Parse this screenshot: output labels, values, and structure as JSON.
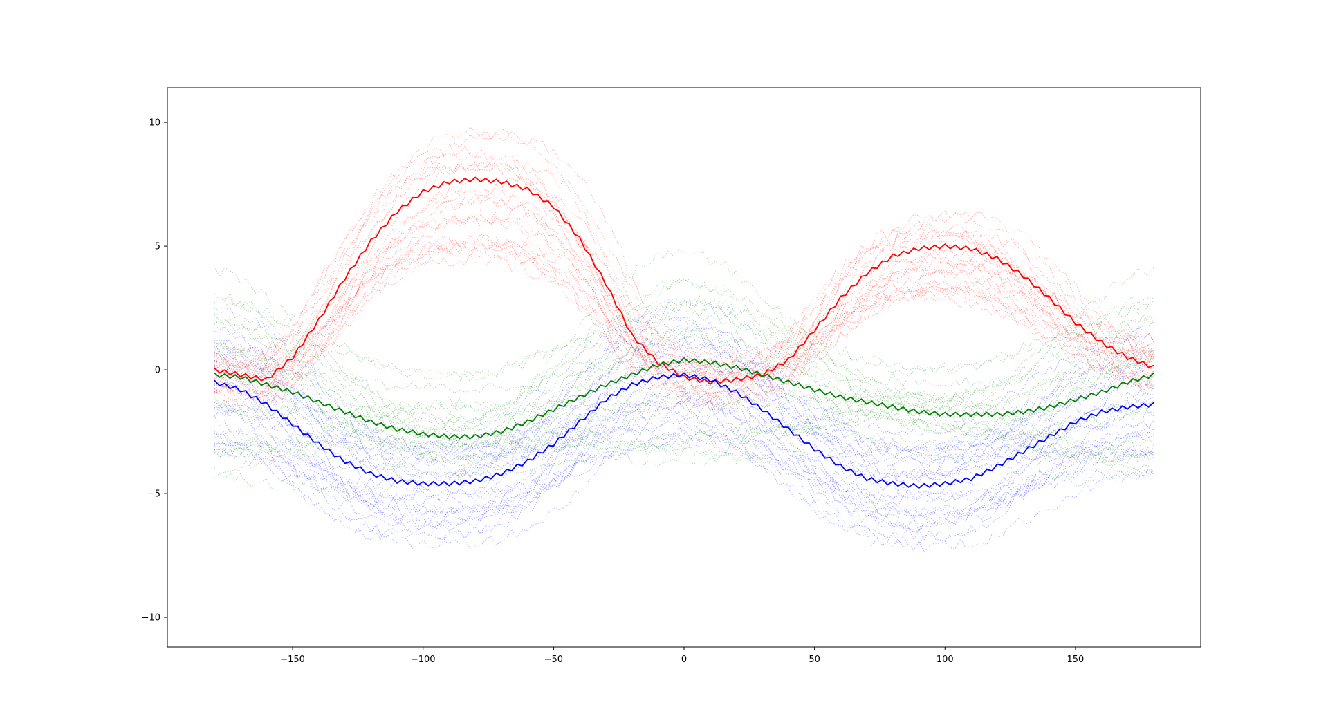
{
  "chart_data": {
    "type": "line",
    "title": "",
    "xlabel": "",
    "ylabel": "",
    "xlim": [
      -198,
      198
    ],
    "ylim": [
      -11.2,
      11.4
    ],
    "grid": false,
    "legend": "none",
    "x_ticks": [
      -150,
      -100,
      -50,
      0,
      50,
      100,
      150
    ],
    "x_tick_labels": [
      "−150",
      "−100",
      "−50",
      "0",
      "50",
      "100",
      "150"
    ],
    "y_ticks": [
      -10,
      -5,
      0,
      5,
      10
    ],
    "y_tick_labels": [
      "−10",
      "−5",
      "0",
      "5",
      "10"
    ],
    "x": [
      -180,
      -170,
      -160,
      -150,
      -140,
      -130,
      -120,
      -110,
      -100,
      -90,
      -80,
      -70,
      -60,
      -50,
      -40,
      -30,
      -20,
      -10,
      0,
      10,
      20,
      30,
      40,
      50,
      60,
      70,
      80,
      90,
      100,
      110,
      120,
      130,
      140,
      150,
      160,
      170,
      180
    ],
    "series": [
      {
        "color": "#ff0000",
        "style": "solid",
        "values": [
          0.0,
          -0.2,
          -0.4,
          0.5,
          2.0,
          3.7,
          5.2,
          6.4,
          7.2,
          7.6,
          7.7,
          7.6,
          7.3,
          6.6,
          5.3,
          3.5,
          1.4,
          0.3,
          -0.3,
          -0.5,
          -0.4,
          -0.2,
          0.4,
          1.6,
          2.9,
          3.9,
          4.6,
          4.9,
          5.0,
          4.9,
          4.5,
          3.8,
          2.9,
          1.9,
          1.1,
          0.5,
          0.1
        ]
      },
      {
        "color": "#0000ff",
        "style": "solid",
        "values": [
          -0.5,
          -0.8,
          -1.4,
          -2.2,
          -3.0,
          -3.7,
          -4.2,
          -4.5,
          -4.6,
          -4.6,
          -4.5,
          -4.2,
          -3.7,
          -3.0,
          -2.1,
          -1.2,
          -0.6,
          -0.3,
          -0.2,
          -0.4,
          -0.9,
          -1.6,
          -2.4,
          -3.2,
          -3.9,
          -4.4,
          -4.6,
          -4.7,
          -4.6,
          -4.4,
          -3.9,
          -3.3,
          -2.7,
          -2.1,
          -1.7,
          -1.5,
          -1.4
        ]
      },
      {
        "color": "#008000",
        "style": "solid",
        "values": [
          -0.2,
          -0.3,
          -0.6,
          -0.9,
          -1.3,
          -1.7,
          -2.1,
          -2.4,
          -2.6,
          -2.7,
          -2.7,
          -2.5,
          -2.1,
          -1.6,
          -1.1,
          -0.6,
          -0.2,
          0.2,
          0.4,
          0.3,
          0.1,
          -0.2,
          -0.5,
          -0.8,
          -1.1,
          -1.3,
          -1.5,
          -1.7,
          -1.8,
          -1.8,
          -1.8,
          -1.7,
          -1.5,
          -1.2,
          -0.9,
          -0.5,
          -0.2
        ]
      }
    ],
    "scatter_bands": [
      {
        "color": "#ff0000",
        "count": 25,
        "amplitude_range": [
          0.55,
          1.35
        ],
        "offset_range": [
          -1.0,
          1.2
        ]
      },
      {
        "color": "#0000ff",
        "count": 30,
        "amplitude_range": [
          0.6,
          1.5
        ],
        "offset_range": [
          -3.0,
          3.0
        ]
      },
      {
        "color": "#008000",
        "count": 25,
        "amplitude_range": [
          0.2,
          1.5
        ],
        "offset_range": [
          -4.0,
          4.5
        ]
      }
    ]
  }
}
